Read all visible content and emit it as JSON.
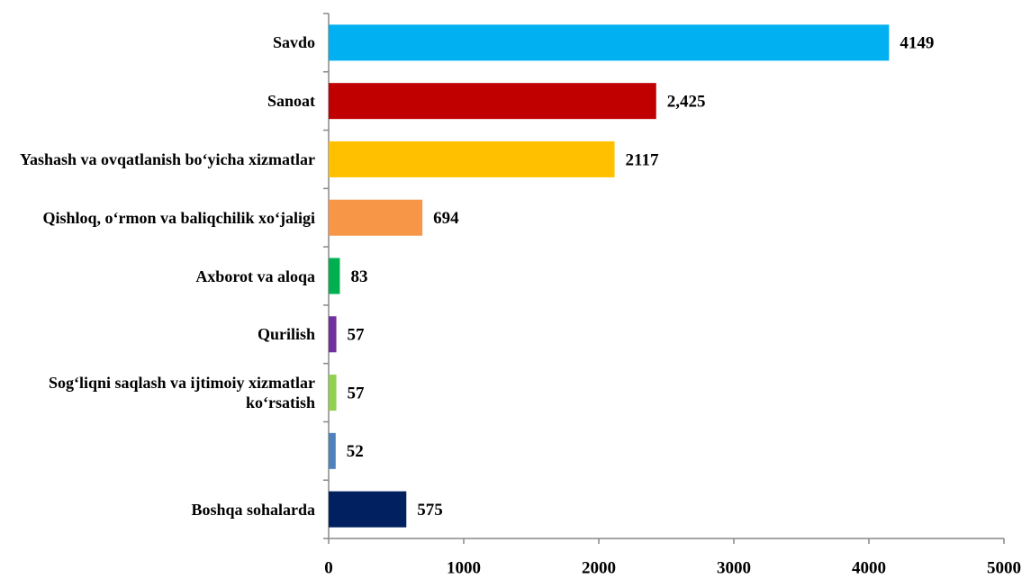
{
  "chart_data": {
    "type": "bar",
    "orientation": "horizontal",
    "categories": [
      "Savdo",
      "Sanoat",
      "Yashash va ovqatlanish bo‘yicha xizmatlar",
      "Qishloq, o‘rmon va baliqchilik xo‘jaligi",
      "Axborot va aloqa",
      "Qurilish",
      "Sog‘liqni saqlash va ijtimoiy xizmatlar ko‘rsatish",
      null,
      "Boshqa sohalarda"
    ],
    "values": [
      4149,
      2425,
      2117,
      694,
      83,
      57,
      57,
      52,
      575
    ],
    "value_labels": [
      "4149",
      "2,425",
      "2117",
      "694",
      "83",
      "57",
      "57",
      "52",
      "575"
    ],
    "colors": [
      "#00b0f0",
      "#c00000",
      "#ffc000",
      "#f79646",
      "#00b050",
      "#7030a0",
      "#92d050",
      "#4f81bd",
      "#002060"
    ],
    "xlim": [
      0,
      5000
    ],
    "xticks": [
      0,
      1000,
      2000,
      3000,
      4000,
      5000
    ],
    "grid": false
  }
}
